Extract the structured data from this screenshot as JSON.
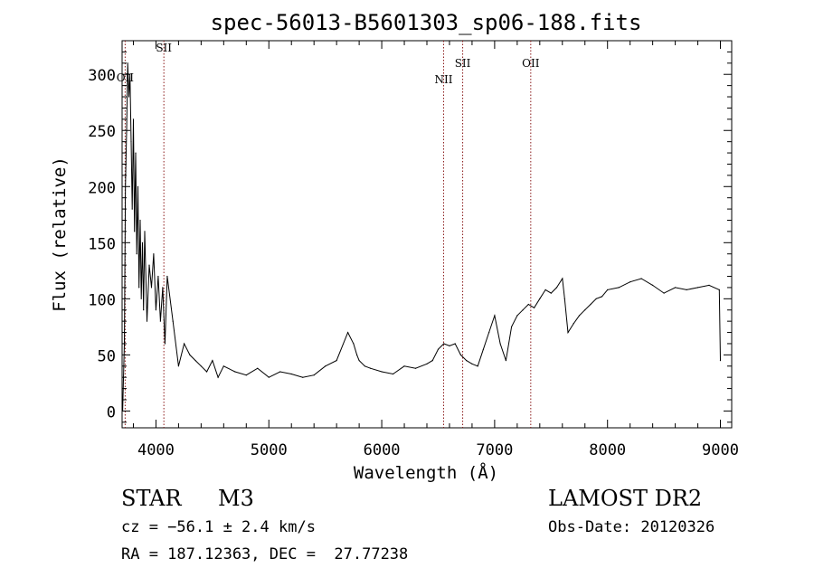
{
  "chart_data": {
    "type": "line",
    "title": "spec-56013-B5601303_sp06-188.fits",
    "xlabel": "Wavelength (Å)",
    "ylabel": "Flux (relative)",
    "xlim": [
      3700,
      9100
    ],
    "ylim": [
      -15,
      330
    ],
    "xticks": [
      4000,
      5000,
      6000,
      7000,
      8000,
      9000
    ],
    "yticks": [
      0,
      50,
      100,
      150,
      200,
      250,
      300
    ],
    "grid": false,
    "line_color": "#000000",
    "marker_color": "#8b1a1a",
    "lines": [
      {
        "label": "OII",
        "x": 3727
      },
      {
        "label": "SII",
        "x": 4070
      },
      {
        "label": "NII",
        "x": 6548
      },
      {
        "label": "SII",
        "x": 6717
      },
      {
        "label": "OII",
        "x": 7320
      }
    ],
    "series": [
      {
        "x": [
          3705,
          3720,
          3730,
          3740,
          3750,
          3760,
          3770,
          3780,
          3790,
          3800,
          3810,
          3820,
          3830,
          3840,
          3850,
          3860,
          3870,
          3880,
          3890,
          3900,
          3920,
          3940,
          3960,
          3980,
          4000,
          4020,
          4040,
          4060,
          4080,
          4100,
          4150,
          4200,
          4250,
          4300,
          4350,
          4400,
          4450,
          4500,
          4550,
          4600,
          4700,
          4800,
          4900,
          5000,
          5100,
          5200,
          5300,
          5400,
          5500,
          5600,
          5700,
          5750,
          5780,
          5800,
          5850,
          5900,
          6000,
          6100,
          6200,
          6300,
          6400,
          6450,
          6500,
          6550,
          6600,
          6650,
          6700,
          6750,
          6800,
          6850,
          6900,
          6950,
          7000,
          7050,
          7100,
          7150,
          7200,
          7250,
          7300,
          7350,
          7400,
          7450,
          7500,
          7550,
          7600,
          7620,
          7650,
          7700,
          7750,
          7800,
          7850,
          7900,
          7950,
          8000,
          8100,
          8200,
          8300,
          8400,
          8500,
          8600,
          8700,
          8800,
          8900,
          8990,
          9000
        ],
        "y": [
          0,
          60,
          200,
          250,
          310,
          280,
          300,
          240,
          180,
          260,
          160,
          230,
          140,
          200,
          110,
          170,
          100,
          150,
          90,
          160,
          80,
          130,
          110,
          140,
          90,
          120,
          80,
          110,
          60,
          120,
          80,
          40,
          60,
          50,
          45,
          40,
          35,
          45,
          30,
          40,
          35,
          32,
          38,
          30,
          35,
          33,
          30,
          32,
          40,
          45,
          70,
          60,
          50,
          45,
          40,
          38,
          35,
          33,
          40,
          38,
          42,
          45,
          55,
          60,
          58,
          60,
          50,
          45,
          42,
          40,
          55,
          70,
          85,
          60,
          45,
          75,
          85,
          90,
          95,
          92,
          100,
          108,
          105,
          110,
          118,
          100,
          70,
          78,
          85,
          90,
          95,
          100,
          102,
          108,
          110,
          115,
          118,
          112,
          105,
          110,
          108,
          110,
          112,
          108,
          45
        ]
      }
    ],
    "annotations": [
      {
        "text": "STAR",
        "position": "bottom-left"
      },
      {
        "text": "M3",
        "position": "bottom-left"
      },
      {
        "text": "cz = −56.1 ± 2.4 km/s",
        "position": "bottom-left"
      },
      {
        "text": "RA = 187.12363, DEC =  27.77238",
        "position": "bottom-left"
      },
      {
        "text": "LAMOST DR2",
        "position": "bottom-right"
      },
      {
        "text": "Obs-Date: 20120326",
        "position": "bottom-right"
      }
    ]
  }
}
